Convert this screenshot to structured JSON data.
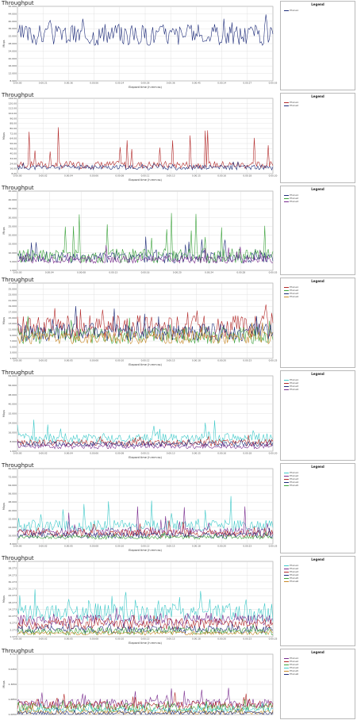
{
  "colors": {
    "s1": "#1f2d7a",
    "s2": "#b32a2a",
    "s3": "#3da33d",
    "s4": "#7a2d8f",
    "s5": "#3fc9c9",
    "s6": "#c98a2a",
    "grid": "#dcdcdc",
    "axis": "#666666"
  },
  "chart_data": [
    {
      "type": "line",
      "title": "Throughput",
      "ylabel": "Mbps",
      "xlabel": "Elapsed time (h:mm:ss)",
      "legend_title": "Legend",
      "legend_position": "right",
      "yticks": [
        "50.000",
        "44.000",
        "40.000",
        "36.000",
        "32.000",
        "28.000",
        "24.000",
        "20.000",
        "16.000",
        "12.000",
        "8.000"
      ],
      "ylim": [
        8,
        50
      ],
      "grid": true,
      "xticks": [
        "0:00:00",
        "0:00:21",
        "0:00:36",
        "0:00:56",
        "0:00:14",
        "0:00:26",
        "0:00:36",
        "0:00:45",
        "0:00:14",
        "0:00:27",
        "0:00:55"
      ],
      "series": [
        {
          "name": "Phone1",
          "color_key": "s1",
          "base": 34,
          "amp": 6,
          "spike": 12,
          "seed": 3
        }
      ]
    },
    {
      "type": "line",
      "title": "Throughput",
      "ylabel": "Mbps",
      "xlabel": "Elapsed time (h:mm:ss)",
      "legend_title": "Legend",
      "legend_position": "right",
      "yticks": [
        "128.00",
        "120.00",
        "112.00",
        "104.00",
        "96.00",
        "88.00",
        "80.00",
        "72.00",
        "64.00",
        "56.00",
        "48.00",
        "40.00",
        "32.00",
        "24.00",
        "16.00",
        "8.00"
      ],
      "ylim": [
        8,
        128
      ],
      "grid": true,
      "xticks": [
        "0:00:00",
        "0:00:02",
        "0:00:04",
        "0:00:06",
        "0:00:08",
        "0:00:11",
        "0:00:13",
        "0:00:15",
        "0:00:16",
        "0:00:18",
        "0:00:20"
      ],
      "series": [
        {
          "name": "Phone1",
          "color_key": "s2",
          "base": 22,
          "amp": 6,
          "spike": 60,
          "seed": 7
        },
        {
          "name": "Phone2",
          "color_key": "s1",
          "base": 18,
          "amp": 4,
          "spike": 8,
          "seed": 11
        }
      ]
    },
    {
      "type": "line",
      "title": "Throughput",
      "ylabel": "Mbps",
      "xlabel": "",
      "legend_title": "Legend",
      "legend_position": "right",
      "yticks": [
        "45.000",
        "40.000",
        "35.000",
        "30.000",
        "25.000",
        "20.000",
        "15.000",
        "10.000",
        "5.000",
        "1.000"
      ],
      "ylim": [
        1,
        45
      ],
      "grid": true,
      "xticks": [
        "0:00:00",
        "0:00:04",
        "0:00:08",
        "0:00:13",
        "0:00:16",
        "0:00:20",
        "0:00:24",
        "0:00:28",
        "0:00:55"
      ],
      "series": [
        {
          "name": "Phone1",
          "color_key": "s1",
          "base": 8,
          "amp": 3,
          "spike": 10,
          "seed": 5
        },
        {
          "name": "Phone2",
          "color_key": "s3",
          "base": 9,
          "amp": 4,
          "spike": 30,
          "seed": 13
        },
        {
          "name": "Phone3",
          "color_key": "s4",
          "base": 7,
          "amp": 2,
          "spike": 8,
          "seed": 21
        }
      ]
    },
    {
      "type": "line",
      "title": "Throughput",
      "ylabel": "Mbps",
      "xlabel": "Elapsed time (h:mm:ss)",
      "legend_title": "Legend",
      "legend_position": "right",
      "yticks": [
        "27.000",
        "25.000",
        "23.000",
        "21.000",
        "19.000",
        "17.000",
        "15.000",
        "13.000",
        "11.000",
        "9.000",
        "7.000",
        "5.000",
        "3.000",
        "1.000"
      ],
      "ylim": [
        1,
        27
      ],
      "grid": true,
      "xticks": [
        "0:00:00",
        "0:00:02",
        "0:00:05",
        "0:00:08",
        "0:00:10",
        "0:00:12",
        "0:00:15",
        "0:00:18",
        "0:00:20",
        "0:00:23",
        "0:00:25"
      ],
      "series": [
        {
          "name": "Phone1",
          "color_key": "s2",
          "base": 12,
          "amp": 4,
          "spike": 10,
          "seed": 17
        },
        {
          "name": "Phone2",
          "color_key": "s3",
          "base": 9,
          "amp": 3,
          "spike": 5,
          "seed": 23
        },
        {
          "name": "Phone3",
          "color_key": "s1",
          "base": 10,
          "amp": 3,
          "spike": 8,
          "seed": 29
        },
        {
          "name": "Phone4",
          "color_key": "s6",
          "base": 8,
          "amp": 2,
          "spike": 4,
          "seed": 31
        }
      ]
    },
    {
      "type": "line",
      "title": "Throughput",
      "ylabel": "Mbps",
      "xlabel": "Elapsed time (h:mm:ss)",
      "legend_title": "Legend",
      "legend_position": "right",
      "yticks": [
        "64.000",
        "56.000",
        "48.000",
        "40.000",
        "32.000",
        "24.000",
        "16.000",
        "8.000",
        "1.000"
      ],
      "ylim": [
        1,
        64
      ],
      "grid": true,
      "xticks": [
        "0:00:00",
        "0:00:02",
        "0:00:04",
        "0:00:06",
        "0:00:08",
        "0:00:11",
        "0:00:13",
        "0:00:15",
        "0:00:16",
        "0:00:18",
        "0:00:20"
      ],
      "series": [
        {
          "name": "Phone1",
          "color_key": "s5",
          "base": 12,
          "amp": 4,
          "spike": 14,
          "seed": 37
        },
        {
          "name": "Phone2",
          "color_key": "s2",
          "base": 8,
          "amp": 3,
          "spike": 4,
          "seed": 41
        },
        {
          "name": "Phone3",
          "color_key": "s1",
          "base": 7,
          "amp": 2,
          "spike": 3,
          "seed": 43
        },
        {
          "name": "Phone4",
          "color_key": "s4",
          "base": 5,
          "amp": 2,
          "spike": 3,
          "seed": 47
        }
      ]
    },
    {
      "type": "line",
      "title": "Throughput",
      "ylabel": "Mbps",
      "xlabel": "Elapsed time (h:mm:ss)",
      "legend_title": "Legend",
      "legend_position": "right",
      "yticks": [
        "80.000",
        "72.000",
        "64.000",
        "56.000",
        "48.000",
        "40.000",
        "32.000",
        "24.000",
        "16.000",
        "8.000"
      ],
      "ylim": [
        1,
        80
      ],
      "grid": true,
      "xticks": [
        "0:00:00",
        "0:00:02",
        "0:00:05",
        "0:00:08",
        "0:00:10",
        "0:00:13",
        "0:00:15",
        "0:00:18",
        "0:00:20",
        "0:00:23",
        "0:00:25"
      ],
      "series": [
        {
          "name": "Phone1",
          "color_key": "s5",
          "base": 20,
          "amp": 6,
          "spike": 30,
          "seed": 53
        },
        {
          "name": "Phone2",
          "color_key": "s4",
          "base": 14,
          "amp": 4,
          "spike": 30,
          "seed": 59
        },
        {
          "name": "Phone3",
          "color_key": "s2",
          "base": 12,
          "amp": 4,
          "spike": 10,
          "seed": 61
        },
        {
          "name": "Phone4",
          "color_key": "s1",
          "base": 10,
          "amp": 3,
          "spike": 6,
          "seed": 67
        },
        {
          "name": "Phone5",
          "color_key": "s3",
          "base": 8,
          "amp": 2,
          "spike": 4,
          "seed": 71
        }
      ]
    },
    {
      "type": "line",
      "title": "Throughput",
      "ylabel": "Mbps",
      "xlabel": "Elapsed time (h:mm:ss)",
      "legend_title": "Legend",
      "legend_position": "right",
      "yticks": [
        "41.997",
        "38.272",
        "34.273",
        "30.273",
        "26.273",
        "22.273",
        "18.273",
        "14.273",
        "10.273",
        "6.273",
        "2.273",
        "1.273"
      ],
      "ylim": [
        1,
        42
      ],
      "grid": true,
      "xticks": [
        "0:00:00",
        "0:00:02",
        "0:00:05",
        "0:00:08",
        "0:00:10",
        "0:00:13",
        "0:00:15",
        "0:00:18",
        "0:00:20",
        "0:00:23",
        "0:00:25"
      ],
      "series": [
        {
          "name": "Phone1",
          "color_key": "s5",
          "base": 14,
          "amp": 5,
          "spike": 10,
          "seed": 73
        },
        {
          "name": "Phone2",
          "color_key": "s4",
          "base": 10,
          "amp": 3,
          "spike": 5,
          "seed": 79
        },
        {
          "name": "Phone3",
          "color_key": "s2",
          "base": 8,
          "amp": 3,
          "spike": 4,
          "seed": 83
        },
        {
          "name": "Phone4",
          "color_key": "s1",
          "base": 5,
          "amp": 2,
          "spike": 3,
          "seed": 89
        },
        {
          "name": "Phone5",
          "color_key": "s3",
          "base": 4,
          "amp": 2,
          "spike": 2,
          "seed": 97
        },
        {
          "name": "Phone6",
          "color_key": "s6",
          "base": 3,
          "amp": 1,
          "spike": 2,
          "seed": 101
        }
      ]
    },
    {
      "type": "line",
      "title": "Throughput",
      "ylabel": "Mbps",
      "xlabel": "",
      "legend_title": "Legend",
      "legend_position": "right",
      "yticks": [
        "3.717",
        "3.0450",
        "2.3650",
        "1.6850",
        "1.0050"
      ],
      "ylim": [
        1,
        3.7
      ],
      "grid": true,
      "xticks": [],
      "series": [
        {
          "name": "Phone1",
          "color_key": "s4",
          "base": 1.5,
          "amp": 0.2,
          "spike": 0.6,
          "seed": 103
        },
        {
          "name": "Phone2",
          "color_key": "s2",
          "base": 1.4,
          "amp": 0.2,
          "spike": 0.5,
          "seed": 107
        },
        {
          "name": "Phone3",
          "color_key": "s3",
          "base": 1.3,
          "amp": 0.2,
          "spike": 0.4,
          "seed": 109
        },
        {
          "name": "Phone4",
          "color_key": "s5",
          "base": 1.2,
          "amp": 0.1,
          "spike": 0.3,
          "seed": 113
        },
        {
          "name": "Phone5",
          "color_key": "s6",
          "base": 1.1,
          "amp": 0.1,
          "spike": 0.3,
          "seed": 127
        },
        {
          "name": "Phone6",
          "color_key": "s1",
          "base": 1.05,
          "amp": 0.1,
          "spike": 0.2,
          "seed": 131
        }
      ]
    }
  ]
}
